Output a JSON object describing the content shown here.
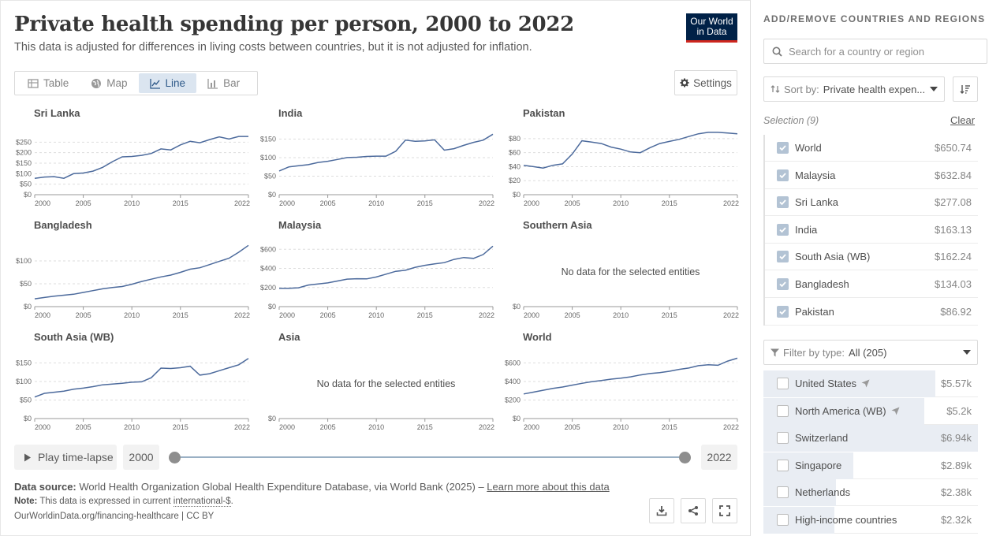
{
  "header": {
    "title": "Private health spending per person, 2000 to 2022",
    "subtitle": "This data is adjusted for differences in living costs between countries, but it is not adjusted for inflation.",
    "logo_line1": "Our World",
    "logo_line2": "in Data"
  },
  "tabs": [
    {
      "label": "Table",
      "icon": "table-icon",
      "active": false
    },
    {
      "label": "Map",
      "icon": "globe-icon",
      "active": false
    },
    {
      "label": "Line",
      "icon": "line-chart-icon",
      "active": true
    },
    {
      "label": "Bar",
      "icon": "bar-chart-icon",
      "active": false
    }
  ],
  "settings_label": "Settings",
  "no_data_text": "No data for the selected entities",
  "chart_data": [
    {
      "type": "line",
      "title": "Sri Lanka",
      "x": [
        2000,
        2001,
        2002,
        2003,
        2004,
        2005,
        2006,
        2007,
        2008,
        2009,
        2010,
        2011,
        2012,
        2013,
        2014,
        2015,
        2016,
        2017,
        2018,
        2019,
        2020,
        2021,
        2022
      ],
      "y": [
        78,
        84,
        86,
        78,
        100,
        103,
        112,
        130,
        157,
        180,
        182,
        187,
        196,
        218,
        213,
        237,
        254,
        247,
        262,
        275,
        265,
        277,
        277
      ],
      "ylim": [
        0,
        300
      ],
      "yticks": [
        0,
        50,
        100,
        150,
        200,
        250
      ],
      "ytick_labels": [
        "$0",
        "$50",
        "$100",
        "$150",
        "$200",
        "$250"
      ],
      "xticks": [
        2000,
        2005,
        2010,
        2015,
        2022
      ]
    },
    {
      "type": "line",
      "title": "India",
      "x": [
        2000,
        2001,
        2002,
        2003,
        2004,
        2005,
        2006,
        2007,
        2008,
        2009,
        2010,
        2011,
        2012,
        2013,
        2014,
        2015,
        2016,
        2017,
        2018,
        2019,
        2020,
        2021,
        2022
      ],
      "y": [
        64,
        75,
        78,
        81,
        87,
        90,
        95,
        100,
        101,
        103,
        104,
        104,
        117,
        147,
        144,
        145,
        148,
        120,
        124,
        133,
        141,
        147,
        163
      ],
      "ylim": [
        0,
        170
      ],
      "yticks": [
        0,
        50,
        100,
        150
      ],
      "ytick_labels": [
        "$0",
        "$50",
        "$100",
        "$150"
      ],
      "xticks": [
        2000,
        2005,
        2010,
        2015,
        2022
      ]
    },
    {
      "type": "line",
      "title": "Pakistan",
      "x": [
        2000,
        2001,
        2002,
        2003,
        2004,
        2005,
        2006,
        2007,
        2008,
        2009,
        2010,
        2011,
        2012,
        2013,
        2014,
        2015,
        2016,
        2017,
        2018,
        2019,
        2020,
        2021,
        2022
      ],
      "y": [
        42,
        40,
        38,
        42,
        44,
        58,
        77,
        75,
        73,
        68,
        65,
        61,
        60,
        67,
        73,
        76,
        79,
        83,
        87,
        89,
        89,
        88,
        87
      ],
      "ylim": [
        0,
        90
      ],
      "yticks": [
        0,
        20,
        40,
        60,
        80
      ],
      "ytick_labels": [
        "$0",
        "$20",
        "$40",
        "$60",
        "$80"
      ],
      "xticks": [
        2000,
        2005,
        2010,
        2015,
        2022
      ]
    },
    {
      "type": "line",
      "title": "Bangladesh",
      "x": [
        2000,
        2001,
        2002,
        2003,
        2004,
        2005,
        2006,
        2007,
        2008,
        2009,
        2010,
        2011,
        2012,
        2013,
        2014,
        2015,
        2016,
        2017,
        2018,
        2019,
        2020,
        2021,
        2022
      ],
      "y": [
        17,
        20,
        23,
        25,
        27,
        31,
        35,
        39,
        42,
        44,
        49,
        55,
        60,
        65,
        69,
        75,
        82,
        85,
        92,
        99,
        106,
        119,
        134
      ],
      "ylim": [
        0,
        138
      ],
      "yticks": [
        0,
        50,
        100
      ],
      "ytick_labels": [
        "$0",
        "$50",
        "$100"
      ],
      "xticks": [
        2000,
        2005,
        2010,
        2015,
        2022
      ]
    },
    {
      "type": "line",
      "title": "Malaysia",
      "x": [
        2000,
        2001,
        2002,
        2003,
        2004,
        2005,
        2006,
        2007,
        2008,
        2009,
        2010,
        2011,
        2012,
        2013,
        2014,
        2015,
        2016,
        2017,
        2018,
        2019,
        2020,
        2021,
        2022
      ],
      "y": [
        192,
        192,
        197,
        226,
        238,
        248,
        268,
        288,
        292,
        290,
        310,
        340,
        370,
        380,
        412,
        432,
        447,
        460,
        494,
        514,
        505,
        545,
        633
      ],
      "ylim": [
        0,
        660
      ],
      "yticks": [
        0,
        200,
        400,
        600
      ],
      "ytick_labels": [
        "$0",
        "$200",
        "$400",
        "$600"
      ],
      "xticks": [
        2000,
        2005,
        2010,
        2015,
        2022
      ]
    },
    {
      "type": "line",
      "title": "Southern Asia",
      "x": [],
      "y": [],
      "no_data": true,
      "ylim": [
        0,
        1
      ],
      "yticks": [
        0
      ],
      "ytick_labels": [
        "$0"
      ],
      "xticks": [
        2000,
        2005,
        2010,
        2015,
        2022
      ]
    },
    {
      "type": "line",
      "title": "South Asia (WB)",
      "x": [
        2000,
        2001,
        2002,
        2003,
        2004,
        2005,
        2006,
        2007,
        2008,
        2009,
        2010,
        2011,
        2012,
        2013,
        2014,
        2015,
        2016,
        2017,
        2018,
        2019,
        2020,
        2021,
        2022
      ],
      "y": [
        58,
        68,
        71,
        74,
        79,
        82,
        86,
        91,
        93,
        95,
        98,
        99,
        110,
        136,
        135,
        137,
        141,
        117,
        121,
        129,
        137,
        145,
        162
      ],
      "ylim": [
        0,
        170
      ],
      "yticks": [
        0,
        50,
        100,
        150
      ],
      "ytick_labels": [
        "$0",
        "$50",
        "$100",
        "$150"
      ],
      "xticks": [
        2000,
        2005,
        2010,
        2015,
        2022
      ]
    },
    {
      "type": "line",
      "title": "Asia",
      "x": [],
      "y": [],
      "no_data": true,
      "ylim": [
        0,
        1
      ],
      "yticks": [
        0
      ],
      "ytick_labels": [
        "$0"
      ],
      "xticks": [
        2000,
        2005,
        2010,
        2015,
        2022
      ]
    },
    {
      "type": "line",
      "title": "World",
      "x": [
        2000,
        2001,
        2002,
        2003,
        2004,
        2005,
        2006,
        2007,
        2008,
        2009,
        2010,
        2011,
        2012,
        2013,
        2014,
        2015,
        2016,
        2017,
        2018,
        2019,
        2020,
        2021,
        2022
      ],
      "y": [
        265,
        285,
        305,
        325,
        340,
        360,
        380,
        398,
        410,
        425,
        435,
        450,
        470,
        485,
        495,
        510,
        530,
        545,
        570,
        580,
        575,
        620,
        651
      ],
      "ylim": [
        0,
        680
      ],
      "yticks": [
        0,
        200,
        400,
        600
      ],
      "ytick_labels": [
        "$0",
        "$200",
        "$400",
        "$600"
      ],
      "xticks": [
        2000,
        2005,
        2010,
        2015,
        2022
      ]
    }
  ],
  "line_color": "#4c6a9c",
  "timeline": {
    "play_label": "Play time-lapse",
    "start_year": "2000",
    "end_year": "2022"
  },
  "footer": {
    "source_label": "Data source:",
    "source_text": "World Health Organization Global Health Expenditure Database, via World Bank (2025) – ",
    "learn_more": "Learn more about this data",
    "note_label": "Note:",
    "note_text": "This data is expressed in current ",
    "note_term": "international-$",
    "note_end": ".",
    "url": "OurWorldinData.org/financing-healthcare | CC BY"
  },
  "sidebar": {
    "heading": "ADD/REMOVE COUNTRIES AND REGIONS",
    "search_placeholder": "Search for a country or region",
    "sort_label": "Sort by:",
    "sort_value": "Private health expen...",
    "selection_label": "Selection (9)",
    "clear_label": "Clear",
    "selected": [
      {
        "name": "World",
        "value": "$650.74"
      },
      {
        "name": "Malaysia",
        "value": "$632.84"
      },
      {
        "name": "Sri Lanka",
        "value": "$277.08"
      },
      {
        "name": "India",
        "value": "$163.13"
      },
      {
        "name": "South Asia (WB)",
        "value": "$162.24"
      },
      {
        "name": "Bangladesh",
        "value": "$134.03"
      },
      {
        "name": "Pakistan",
        "value": "$86.92"
      }
    ],
    "filter_label": "Filter by type:",
    "filter_value": "All (205)",
    "available": [
      {
        "name": "United States",
        "value": "$5.57k",
        "share": 0.8,
        "arrow": true
      },
      {
        "name": "North America (WB)",
        "value": "$5.2k",
        "share": 0.75,
        "arrow": true
      },
      {
        "name": "Switzerland",
        "value": "$6.94k",
        "share": 1.0,
        "arrow": false
      },
      {
        "name": "Singapore",
        "value": "$2.89k",
        "share": 0.42,
        "arrow": false
      },
      {
        "name": "Netherlands",
        "value": "$2.38k",
        "share": 0.34,
        "arrow": false
      },
      {
        "name": "High-income countries",
        "value": "$2.32k",
        "share": 0.33,
        "arrow": false
      }
    ]
  }
}
